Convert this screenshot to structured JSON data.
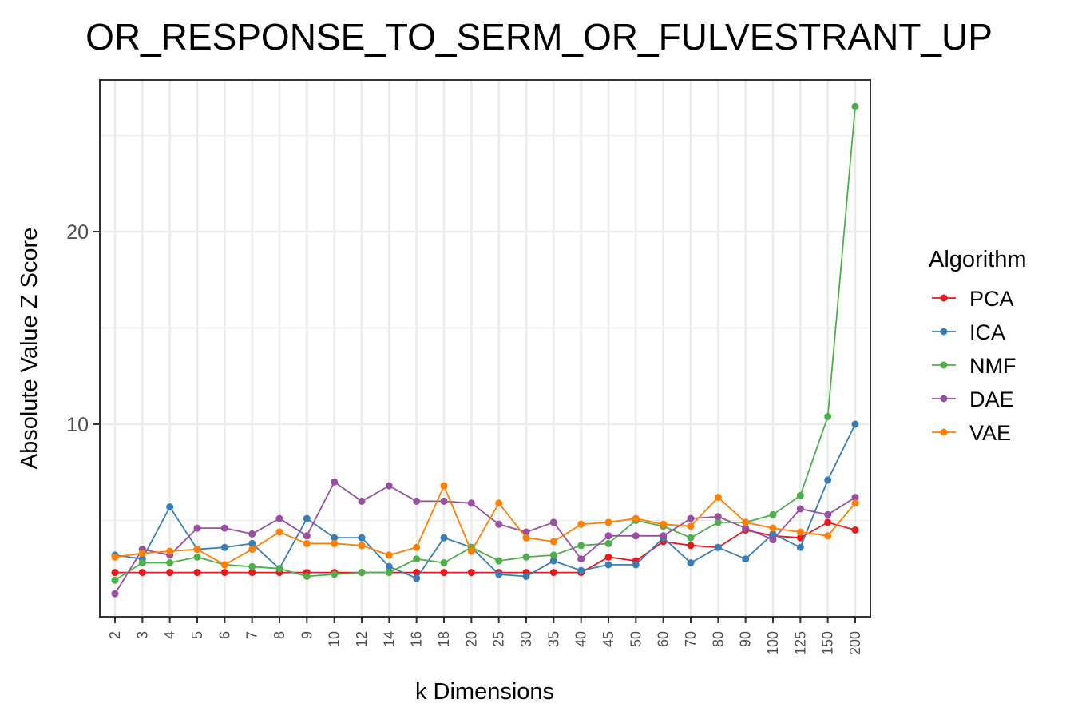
{
  "chart_data": {
    "type": "line",
    "title": "OR_RESPONSE_TO_SERM_OR_FULVESTRANT_UP",
    "xlabel": "k Dimensions",
    "ylabel": "Absolute Value Z Score",
    "categories": [
      "2",
      "3",
      "4",
      "5",
      "6",
      "7",
      "8",
      "9",
      "10",
      "12",
      "14",
      "16",
      "18",
      "20",
      "25",
      "30",
      "35",
      "40",
      "45",
      "50",
      "60",
      "70",
      "80",
      "90",
      "100",
      "125",
      "150",
      "200"
    ],
    "y_ticks": [
      "10",
      "20"
    ],
    "ylim": [
      0,
      28
    ],
    "grid": true,
    "legend": {
      "title": "Algorithm",
      "placement": "right"
    },
    "series": [
      {
        "name": "PCA",
        "color": "#e41a1c",
        "values": [
          2.3,
          2.3,
          2.3,
          2.3,
          2.3,
          2.3,
          2.3,
          2.3,
          2.3,
          2.3,
          2.3,
          2.3,
          2.3,
          2.3,
          2.3,
          2.3,
          2.3,
          2.3,
          3.1,
          2.9,
          3.9,
          3.7,
          3.6,
          4.5,
          4.2,
          4.1,
          4.9,
          4.5
        ]
      },
      {
        "name": "ICA",
        "color": "#377eb8",
        "values": [
          3.2,
          3.0,
          5.7,
          3.5,
          3.6,
          3.8,
          2.5,
          5.1,
          4.1,
          4.1,
          2.6,
          2.0,
          4.1,
          3.6,
          2.2,
          2.1,
          2.9,
          2.4,
          2.7,
          2.7,
          4.1,
          2.8,
          3.6,
          3.0,
          4.3,
          3.6,
          7.1,
          10.0
        ]
      },
      {
        "name": "NMF",
        "color": "#4daf4a",
        "values": [
          1.9,
          2.8,
          2.8,
          3.1,
          2.7,
          2.6,
          2.5,
          2.1,
          2.2,
          2.3,
          2.3,
          3.0,
          2.8,
          3.6,
          2.9,
          3.1,
          3.2,
          3.7,
          3.8,
          5.0,
          4.7,
          4.1,
          4.9,
          4.9,
          5.3,
          6.3,
          10.4,
          26.5
        ]
      },
      {
        "name": "DAE",
        "color": "#984ea3",
        "values": [
          1.2,
          3.5,
          3.2,
          4.6,
          4.6,
          4.3,
          5.1,
          4.2,
          7.0,
          6.0,
          6.8,
          6.0,
          6.0,
          5.9,
          4.8,
          4.4,
          4.9,
          3.0,
          4.2,
          4.2,
          4.2,
          5.1,
          5.2,
          4.6,
          4.0,
          5.6,
          5.3,
          6.2
        ]
      },
      {
        "name": "VAE",
        "color": "#ff7f00",
        "values": [
          3.1,
          3.3,
          3.4,
          3.5,
          2.7,
          3.5,
          4.4,
          3.8,
          3.8,
          3.7,
          3.2,
          3.6,
          6.8,
          3.4,
          5.9,
          4.1,
          3.9,
          4.8,
          4.9,
          5.1,
          4.8,
          4.7,
          6.2,
          4.9,
          4.6,
          4.4,
          4.2,
          5.9
        ]
      }
    ]
  }
}
